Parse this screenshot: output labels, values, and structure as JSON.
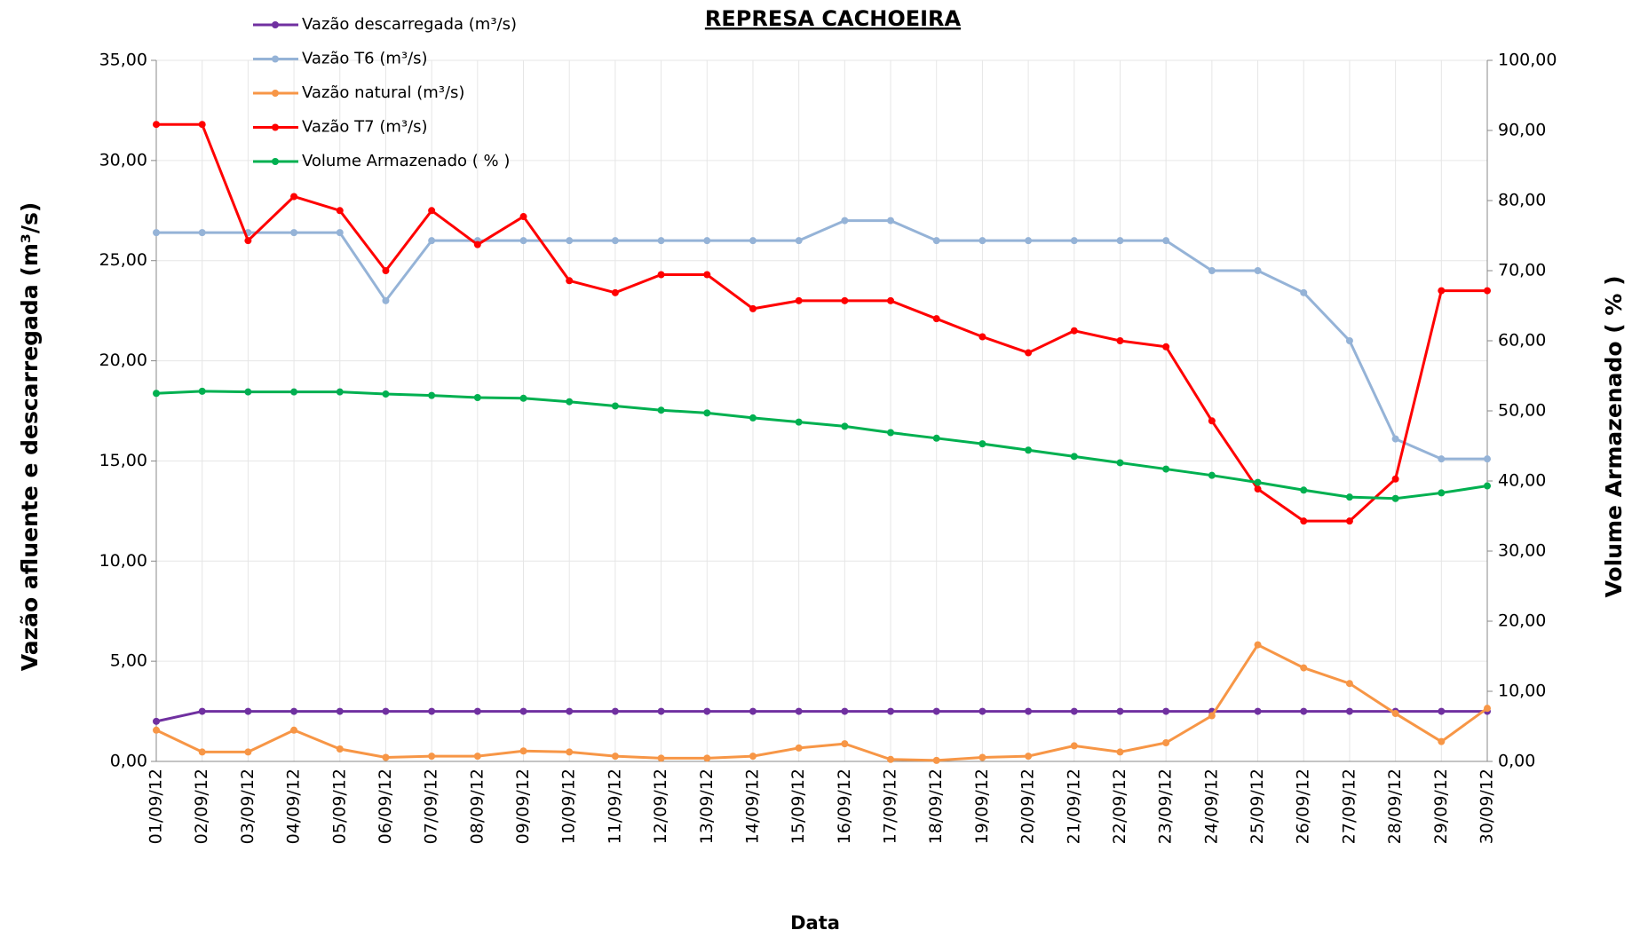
{
  "chart_data": {
    "type": "line",
    "title": "REPRESA CACHOEIRA",
    "x_label": "Data",
    "y_label": "Vazão afluente e descarregada (m³/s)",
    "y2_label": "Volume Armazenado ( % )",
    "categories": [
      "01/09/12",
      "02/09/12",
      "03/09/12",
      "04/09/12",
      "05/09/12",
      "06/09/12",
      "07/09/12",
      "08/09/12",
      "09/09/12",
      "10/09/12",
      "11/09/12",
      "12/09/12",
      "13/09/12",
      "14/09/12",
      "15/09/12",
      "16/09/12",
      "17/09/12",
      "18/09/12",
      "19/09/12",
      "20/09/12",
      "21/09/12",
      "22/09/12",
      "23/09/12",
      "24/09/12",
      "25/09/12",
      "26/09/12",
      "27/09/12",
      "28/09/12",
      "29/09/12",
      "30/09/12"
    ],
    "series": [
      {
        "name": "Vazão descarregada (m³/s)",
        "color": "#7030a0",
        "values": [
          2.0,
          2.5,
          2.5,
          2.5,
          2.5,
          2.5,
          2.5,
          2.5,
          2.5,
          2.5,
          2.5,
          2.5,
          2.5,
          2.5,
          2.5,
          2.5,
          2.5,
          2.5,
          2.5,
          2.5,
          2.5,
          2.5,
          2.5,
          2.5,
          2.5,
          2.5,
          2.5,
          2.5,
          2.5,
          2.5
        ]
      },
      {
        "name": "Vazão T6 (m³/s)",
        "color": "#95b3d7",
        "values": [
          26.4,
          26.4,
          26.4,
          26.4,
          26.4,
          23.0,
          26.0,
          26.0,
          26.0,
          26.0,
          26.0,
          26.0,
          26.0,
          26.0,
          26.0,
          27.0,
          27.0,
          26.0,
          26.0,
          26.0,
          26.0,
          26.0,
          26.0,
          24.5,
          24.5,
          23.4,
          21.0,
          16.1,
          15.1,
          15.1
        ]
      },
      {
        "name": "Vazão natural (m³/s)",
        "color": "#f79646",
        "values": [
          1.56,
          0.47,
          0.47,
          1.56,
          0.62,
          0.2,
          0.26,
          0.26,
          0.52,
          0.47,
          0.26,
          0.16,
          0.16,
          0.26,
          0.67,
          0.88,
          0.1,
          0.05,
          0.2,
          0.26,
          0.78,
          0.47,
          0.93,
          2.28,
          5.82,
          4.67,
          3.89,
          2.39,
          0.99,
          2.65
        ]
      },
      {
        "name": "Vazão T7 (m³/s)",
        "color": "#ff0000",
        "values": [
          31.8,
          31.8,
          26.0,
          28.2,
          27.5,
          24.5,
          27.5,
          25.8,
          27.2,
          24.0,
          23.4,
          24.3,
          24.3,
          22.6,
          23.0,
          23.0,
          23.0,
          22.1,
          21.2,
          20.4,
          21.5,
          21.0,
          20.7,
          17.0,
          13.6,
          12.0,
          12.0,
          14.1,
          23.5,
          23.5
        ]
      },
      {
        "name": "Volume Armazenado ( % )",
        "color": "#00b050",
        "axis": "y2",
        "values": [
          52.5,
          52.8,
          52.7,
          52.7,
          52.7,
          52.4,
          52.2,
          51.9,
          51.8,
          51.3,
          50.7,
          50.1,
          49.7,
          49.0,
          48.4,
          47.8,
          46.9,
          46.1,
          45.3,
          44.4,
          43.5,
          42.6,
          41.7,
          40.8,
          39.8,
          38.7,
          37.7,
          37.5,
          38.3,
          39.3
        ]
      }
    ],
    "ylim": [
      0,
      35
    ],
    "yticks": [
      {
        "value": 0,
        "label": "0,00"
      },
      {
        "value": 5,
        "label": "5,00"
      },
      {
        "value": 10,
        "label": "10,00"
      },
      {
        "value": 15,
        "label": "15,00"
      },
      {
        "value": 20,
        "label": "20,00"
      },
      {
        "value": 25,
        "label": "25,00"
      },
      {
        "value": 30,
        "label": "30,00"
      },
      {
        "value": 35,
        "label": "35,00"
      }
    ],
    "y2lim": [
      0,
      100
    ],
    "y2ticks": [
      {
        "value": 0,
        "label": "0,00"
      },
      {
        "value": 10,
        "label": "10,00"
      },
      {
        "value": 20,
        "label": "20,00"
      },
      {
        "value": 30,
        "label": "30,00"
      },
      {
        "value": 40,
        "label": "40,00"
      },
      {
        "value": 50,
        "label": "50,00"
      },
      {
        "value": 60,
        "label": "60,00"
      },
      {
        "value": 70,
        "label": "70,00"
      },
      {
        "value": 80,
        "label": "80,00"
      },
      {
        "value": 90,
        "label": "90,00"
      },
      {
        "value": 100,
        "label": "100,00"
      }
    ],
    "grid": true,
    "legend": "top-left"
  }
}
